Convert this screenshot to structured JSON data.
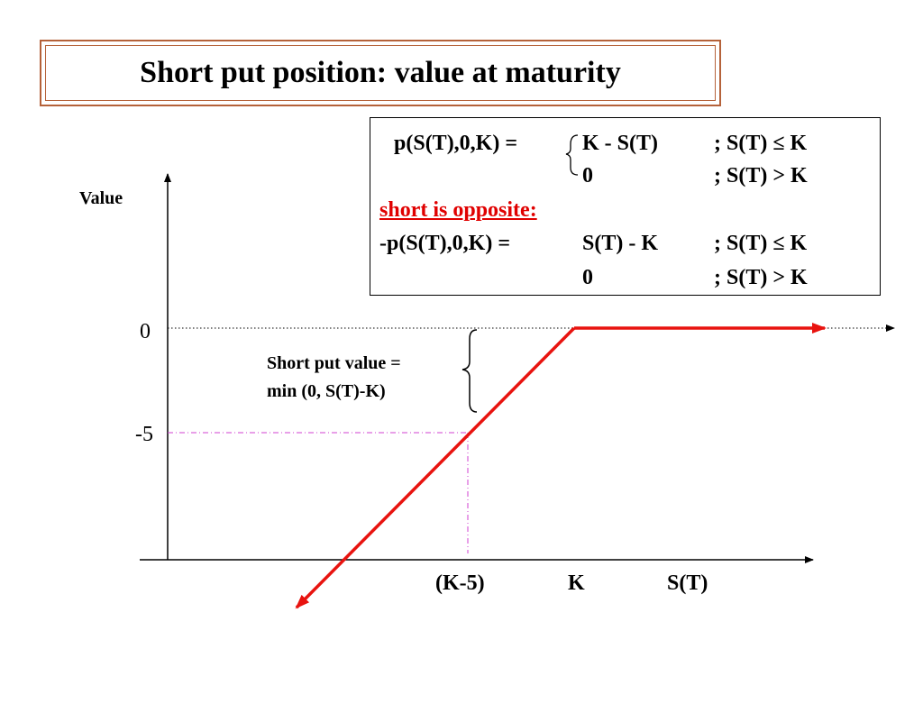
{
  "title": "Short put position: value at maturity",
  "formula": {
    "put_lhs": "p(S(T),0,K)  =",
    "put_case1_expr": "K  -  S(T)",
    "put_case1_cond": ";  S(T) ≤  K",
    "put_case2_expr": "0",
    "put_case2_cond": ";  S(T) > K",
    "short_heading": "short is opposite:",
    "short_lhs": "-p(S(T),0,K)  =",
    "short_case1_expr": "S(T) - K",
    "short_case1_cond": "; S(T) ≤  K",
    "short_case2_expr": "0",
    "short_case2_cond": ";  S(T) > K"
  },
  "axes": {
    "y_label": "Value",
    "y_tick_zero": "0",
    "y_tick_minus5": "-5",
    "x_tick_kminus5": "(K-5)",
    "x_tick_k": "K",
    "x_label": "S(T)"
  },
  "annotation": {
    "line1": "Short put value =",
    "line2": "min (0, S(T)-K)"
  },
  "colors": {
    "payoff_line": "#e8130f",
    "guide_line": "#d040d0",
    "title_border": "#b5623a",
    "heading_red": "#e00000"
  }
}
